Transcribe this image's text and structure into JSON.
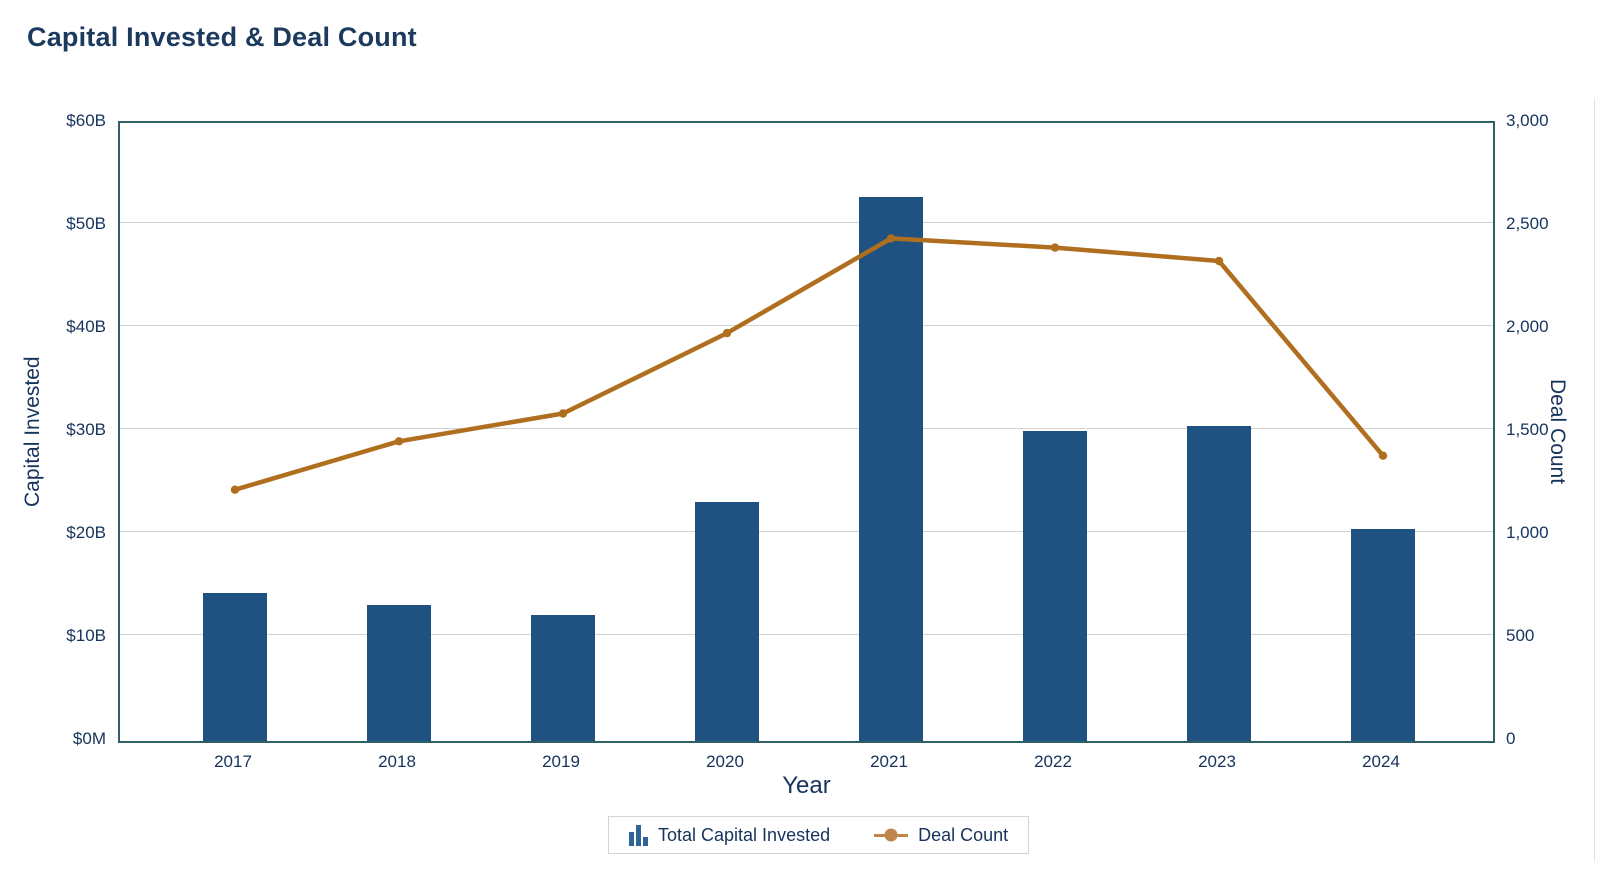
{
  "title": "Capital Invested & Deal Count",
  "chart_data": {
    "type": "bar+line",
    "categories": [
      "2017",
      "2018",
      "2019",
      "2020",
      "2021",
      "2022",
      "2023",
      "2024"
    ],
    "series": [
      {
        "name": "Total Capital Invested",
        "type": "bar",
        "axis": "left",
        "unit": "$B",
        "values": [
          14.4,
          13.2,
          12.2,
          23.2,
          52.8,
          30.1,
          30.6,
          20.6
        ],
        "color": "#1f5181"
      },
      {
        "name": "Deal Count",
        "type": "line",
        "axis": "right",
        "values": [
          1220,
          1455,
          1590,
          1980,
          2440,
          2395,
          2330,
          1385
        ],
        "color": "#b06f1f",
        "marker": "circle",
        "marker_color": "#b06f1f"
      }
    ],
    "xlabel": "Year",
    "ylabel_left": "Capital Invested",
    "ylabel_right": "Deal Count",
    "y_left": {
      "min": 0,
      "max": 60,
      "tick_labels": [
        "$0M",
        "$10B",
        "$20B",
        "$30B",
        "$40B",
        "$50B",
        "$60B"
      ]
    },
    "y_right": {
      "min": 0,
      "max": 3000,
      "tick_labels": [
        "0",
        "500",
        "1,000",
        "1,500",
        "2,000",
        "2,500",
        "3,000"
      ]
    },
    "grid": "horizontal",
    "legend_position": "bottom",
    "legend_icons": [
      "bar-chart-icon",
      "line-marker-icon"
    ]
  },
  "colors": {
    "bar": "#1f5181",
    "line": "#b06f1f",
    "legend_marker": "#c1854f",
    "plot_border": "#2e5f66",
    "gridline": "#d2d2d2",
    "text": "#16335c",
    "title_text": "#1b3a5e",
    "background": "#ffffff"
  }
}
